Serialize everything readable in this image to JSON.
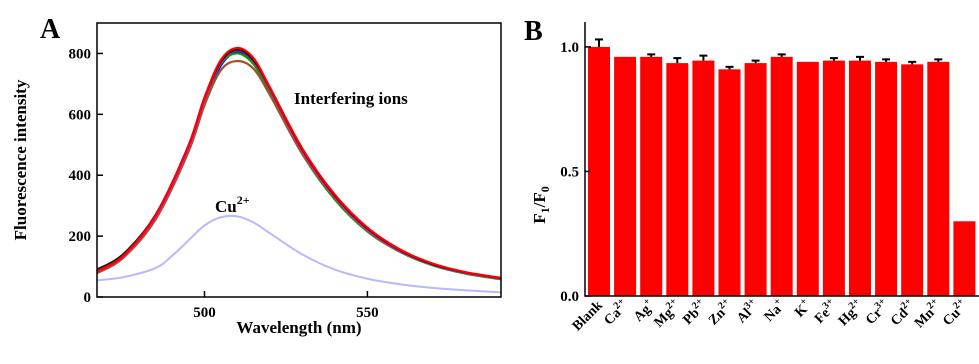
{
  "panels": {
    "a": {
      "letter": "A"
    },
    "b": {
      "letter": "B"
    }
  },
  "chart_data": [
    {
      "type": "line",
      "panel": "A",
      "xlabel": "Wavelength (nm)",
      "ylabel": "Fluorescence intensity",
      "xlim": [
        467,
        591
      ],
      "ylim": [
        0,
        900
      ],
      "xticks": [
        500,
        550
      ],
      "yticks": [
        0,
        200,
        400,
        600,
        800
      ],
      "grid": false,
      "annotations": [
        {
          "text": "Interfering ions",
          "x": 530,
          "y": 735
        },
        {
          "text": "Cu",
          "sup": "2+",
          "x": 507,
          "y": 285
        }
      ],
      "series": [
        {
          "color": "#0000ff",
          "x": [
            467,
            475,
            485,
            495,
            500,
            505,
            510,
            515,
            520,
            530,
            540,
            550,
            560,
            570,
            580,
            591
          ],
          "y": [
            80,
            130,
            260,
            480,
            640,
            760,
            805,
            770,
            680,
            480,
            330,
            220,
            150,
            105,
            78,
            60
          ]
        },
        {
          "color": "#00a000",
          "x": [
            467,
            475,
            485,
            495,
            500,
            505,
            510,
            515,
            520,
            530,
            540,
            550,
            560,
            570,
            580,
            591
          ],
          "y": [
            82,
            132,
            262,
            485,
            645,
            765,
            800,
            765,
            672,
            470,
            320,
            215,
            148,
            104,
            77,
            58
          ]
        },
        {
          "color": "#a0522d",
          "x": [
            467,
            475,
            485,
            495,
            500,
            505,
            510,
            515,
            520,
            530,
            540,
            550,
            560,
            570,
            580,
            591
          ],
          "y": [
            78,
            128,
            255,
            475,
            630,
            745,
            775,
            750,
            665,
            470,
            325,
            218,
            150,
            106,
            79,
            60
          ]
        },
        {
          "color": "#ff00ff",
          "x": [
            467,
            475,
            485,
            495,
            500,
            505,
            510,
            515,
            520,
            530,
            540,
            550,
            560,
            570,
            580,
            591
          ],
          "y": [
            84,
            134,
            265,
            490,
            650,
            770,
            810,
            775,
            685,
            482,
            330,
            222,
            152,
            107,
            80,
            61
          ]
        },
        {
          "color": "#101010",
          "x": [
            467,
            475,
            485,
            495,
            500,
            505,
            510,
            515,
            520,
            530,
            540,
            550,
            560,
            570,
            580,
            591
          ],
          "y": [
            90,
            140,
            270,
            495,
            655,
            773,
            812,
            778,
            688,
            485,
            333,
            225,
            154,
            108,
            81,
            62
          ]
        },
        {
          "color": "#ff0000",
          "x": [
            467,
            475,
            485,
            495,
            500,
            505,
            510,
            515,
            520,
            530,
            540,
            550,
            560,
            570,
            580,
            591
          ],
          "y": [
            85,
            135,
            268,
            495,
            655,
            778,
            818,
            785,
            690,
            488,
            336,
            228,
            156,
            110,
            82,
            63
          ]
        },
        {
          "color": "#b8b8ff",
          "x": [
            467,
            475,
            485,
            490,
            495,
            500,
            505,
            510,
            515,
            520,
            530,
            540,
            550,
            560,
            570,
            580,
            591
          ],
          "y": [
            55,
            65,
            95,
            135,
            185,
            235,
            262,
            265,
            245,
            210,
            140,
            90,
            60,
            42,
            30,
            22,
            15
          ]
        }
      ]
    },
    {
      "type": "bar",
      "panel": "B",
      "ylabel": "F1/F0",
      "ylabel_main": "F",
      "ylabel_sub1": "1",
      "ylabel_slash": "/F",
      "ylabel_sub2": "0",
      "ylim": [
        0,
        1.1
      ],
      "yticks": [
        "0.0",
        "0.5",
        "1.0"
      ],
      "ytick_values": [
        0,
        0.5,
        1.0
      ],
      "bar_color": "#ff0000",
      "categories": [
        "Blank",
        "Ca",
        "Ag",
        "Mg",
        "Pb",
        "Zn",
        "Al",
        "Na",
        "K",
        "Fe",
        "Hg",
        "Cr",
        "Cd",
        "Mn",
        "Cu"
      ],
      "category_charges": [
        "",
        "2+",
        "+",
        "2+",
        "2+",
        "2+",
        "3+",
        "+",
        "+",
        "3+",
        "2+",
        "3+",
        "2+",
        "2+",
        "2+"
      ],
      "values": [
        1.0,
        0.96,
        0.96,
        0.935,
        0.945,
        0.91,
        0.935,
        0.96,
        0.94,
        0.945,
        0.945,
        0.94,
        0.93,
        0.94,
        0.3
      ],
      "errors": [
        0.03,
        0.0,
        0.01,
        0.02,
        0.02,
        0.01,
        0.01,
        0.01,
        0.0,
        0.01,
        0.015,
        0.01,
        0.01,
        0.01,
        0.0
      ]
    }
  ]
}
